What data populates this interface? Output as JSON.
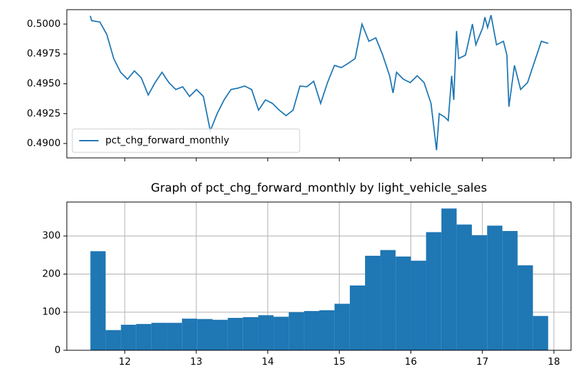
{
  "chart_data": [
    {
      "type": "line",
      "x": [
        11.518,
        11.537,
        11.653,
        11.749,
        11.846,
        11.942,
        12.039,
        12.135,
        12.231,
        12.328,
        12.424,
        12.521,
        12.617,
        12.714,
        12.81,
        12.906,
        13.003,
        13.099,
        13.196,
        13.292,
        13.389,
        13.485,
        13.581,
        13.678,
        13.774,
        13.871,
        13.967,
        14.064,
        14.16,
        14.256,
        14.353,
        14.449,
        14.546,
        14.642,
        14.739,
        14.835,
        14.932,
        15.028,
        15.124,
        15.221,
        15.317,
        15.414,
        15.51,
        15.607,
        15.703,
        15.751,
        15.8,
        15.896,
        15.992,
        16.089,
        16.185,
        16.282,
        16.359,
        16.397,
        16.474,
        16.523,
        16.571,
        16.6,
        16.639,
        16.668,
        16.764,
        16.861,
        16.909,
        17.006,
        17.035,
        17.073,
        17.121,
        17.198,
        17.295,
        17.343,
        17.371,
        17.449,
        17.535,
        17.632,
        17.728,
        17.825,
        17.921
      ],
      "series": [
        {
          "name": "pct_chg_forward_monthly",
          "color": "#1f77b4",
          "values": [
            0.50069,
            0.50029,
            0.50017,
            0.49913,
            0.49711,
            0.49596,
            0.49538,
            0.49608,
            0.4955,
            0.49406,
            0.4951,
            0.49596,
            0.4951,
            0.49452,
            0.49475,
            0.49394,
            0.49452,
            0.49394,
            0.49106,
            0.4925,
            0.49365,
            0.49452,
            0.49463,
            0.49481,
            0.49452,
            0.49279,
            0.49365,
            0.49336,
            0.49279,
            0.49233,
            0.49279,
            0.49481,
            0.49475,
            0.49521,
            0.49336,
            0.4951,
            0.49654,
            0.49636,
            0.49671,
            0.49711,
            0.5,
            0.49856,
            0.49885,
            0.4974,
            0.49567,
            0.49423,
            0.49596,
            0.49538,
            0.4951,
            0.49567,
            0.4951,
            0.49336,
            0.48944,
            0.4925,
            0.49221,
            0.49192,
            0.49567,
            0.49365,
            0.49942,
            0.49711,
            0.4974,
            0.5,
            0.49827,
            0.49971,
            0.50058,
            0.49971,
            0.50075,
            0.49827,
            0.49856,
            0.4974,
            0.49308,
            0.49654,
            0.49452,
            0.4951,
            0.49683,
            0.49856,
            0.49838
          ]
        }
      ],
      "xlim": [
        11.19,
        18.24
      ],
      "xticks": [
        12,
        13,
        14,
        15,
        16,
        17,
        18
      ],
      "ylim": [
        0.48879,
        0.50121
      ],
      "yticks": [
        {
          "value": 0.49,
          "label": "0.4900"
        },
        {
          "value": 0.4925,
          "label": "0.4925"
        },
        {
          "value": 0.495,
          "label": "0.4950"
        },
        {
          "value": 0.4975,
          "label": "0.4975"
        },
        {
          "value": 0.5,
          "label": "0.5000"
        }
      ],
      "grid": false,
      "legend": "lower left"
    },
    {
      "type": "histogram",
      "title": "Graph of pct_chg_forward_monthly by light_vehicle_sales",
      "bins": [
        11.52,
        11.733,
        11.947,
        12.16,
        12.373,
        12.587,
        12.8,
        13.013,
        13.227,
        13.44,
        13.653,
        13.867,
        14.08,
        14.293,
        14.507,
        14.72,
        14.933,
        15.147,
        15.36,
        15.573,
        15.787,
        16.0,
        16.213,
        16.427,
        16.64,
        16.853,
        17.067,
        17.28,
        17.493,
        17.707,
        17.92
      ],
      "values": [
        260,
        53,
        67,
        69,
        72,
        72,
        83,
        82,
        80,
        85,
        87,
        92,
        88,
        100,
        103,
        105,
        122,
        170,
        248,
        263,
        246,
        235,
        310,
        372,
        330,
        302,
        327,
        313,
        223,
        90
      ],
      "color": "#1f77b4",
      "xlim": [
        11.19,
        18.24
      ],
      "xticks": [
        12,
        13,
        14,
        15,
        16,
        17,
        18
      ],
      "ylim": [
        0,
        389
      ],
      "yticks": [
        0,
        100,
        200,
        300
      ],
      "grid": true
    }
  ]
}
